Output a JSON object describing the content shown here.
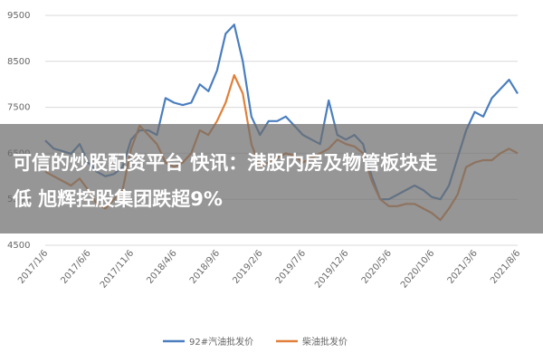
{
  "chart_data": {
    "type": "line",
    "categories": [
      "2017/1/6",
      null,
      null,
      null,
      null,
      "2017/6/6",
      null,
      null,
      null,
      null,
      "2017/11/6",
      null,
      null,
      null,
      null,
      "2018/4/6",
      null,
      null,
      null,
      null,
      "2018/9/6",
      null,
      null,
      null,
      null,
      "2019/2/6",
      null,
      null,
      null,
      null,
      "2019/7/6",
      null,
      null,
      null,
      null,
      "2019/12/6",
      null,
      null,
      null,
      null,
      "2020/5/6",
      null,
      null,
      null,
      null,
      "2020/10/6",
      null,
      null,
      null,
      null,
      "2021/3/6",
      null,
      null,
      null,
      null,
      "2021/8/6"
    ],
    "series": [
      {
        "name": "92#汽油批发价",
        "color": "#4a7ebf",
        "values": [
          6780,
          6600,
          6550,
          6490,
          6700,
          6300,
          6100,
          6000,
          6050,
          6200,
          6800,
          7000,
          7000,
          6900,
          7700,
          7600,
          7550,
          7600,
          8000,
          7850,
          8300,
          9100,
          9300,
          8500,
          7300,
          6900,
          7200,
          7200,
          7300,
          7100,
          6900,
          6800,
          6700,
          7650,
          6900,
          6800,
          6900,
          6700,
          6000,
          5500,
          5500,
          5600,
          5700,
          5800,
          5700,
          5550,
          5500,
          5800,
          6400,
          7000,
          7400,
          7300,
          7700,
          7900,
          8100,
          7800
        ]
      },
      {
        "name": "柴油批发价",
        "color": "#e0803a",
        "values": [
          6100,
          6000,
          5900,
          5800,
          5950,
          5700,
          5400,
          5300,
          5500,
          5700,
          6600,
          7100,
          6900,
          6700,
          6300,
          6200,
          6300,
          6500,
          7000,
          6900,
          7200,
          7600,
          8200,
          7800,
          6700,
          6200,
          6300,
          6400,
          6500,
          6450,
          6300,
          6400,
          6500,
          6600,
          6800,
          6700,
          6650,
          6500,
          5900,
          5500,
          5350,
          5350,
          5400,
          5400,
          5300,
          5200,
          5050,
          5300,
          5600,
          6200,
          6300,
          6350,
          6350,
          6500,
          6600,
          6500
        ]
      }
    ],
    "ylim": [
      4500,
      9500
    ],
    "yticks": [
      4500,
      5500,
      6500,
      7500,
      8500,
      9500
    ],
    "grid": true
  },
  "banner": {
    "lines": [
      "可信的炒股配资平台 快讯：港股内房及物管板块走",
      "低 旭辉控股集团跌超9%"
    ]
  }
}
